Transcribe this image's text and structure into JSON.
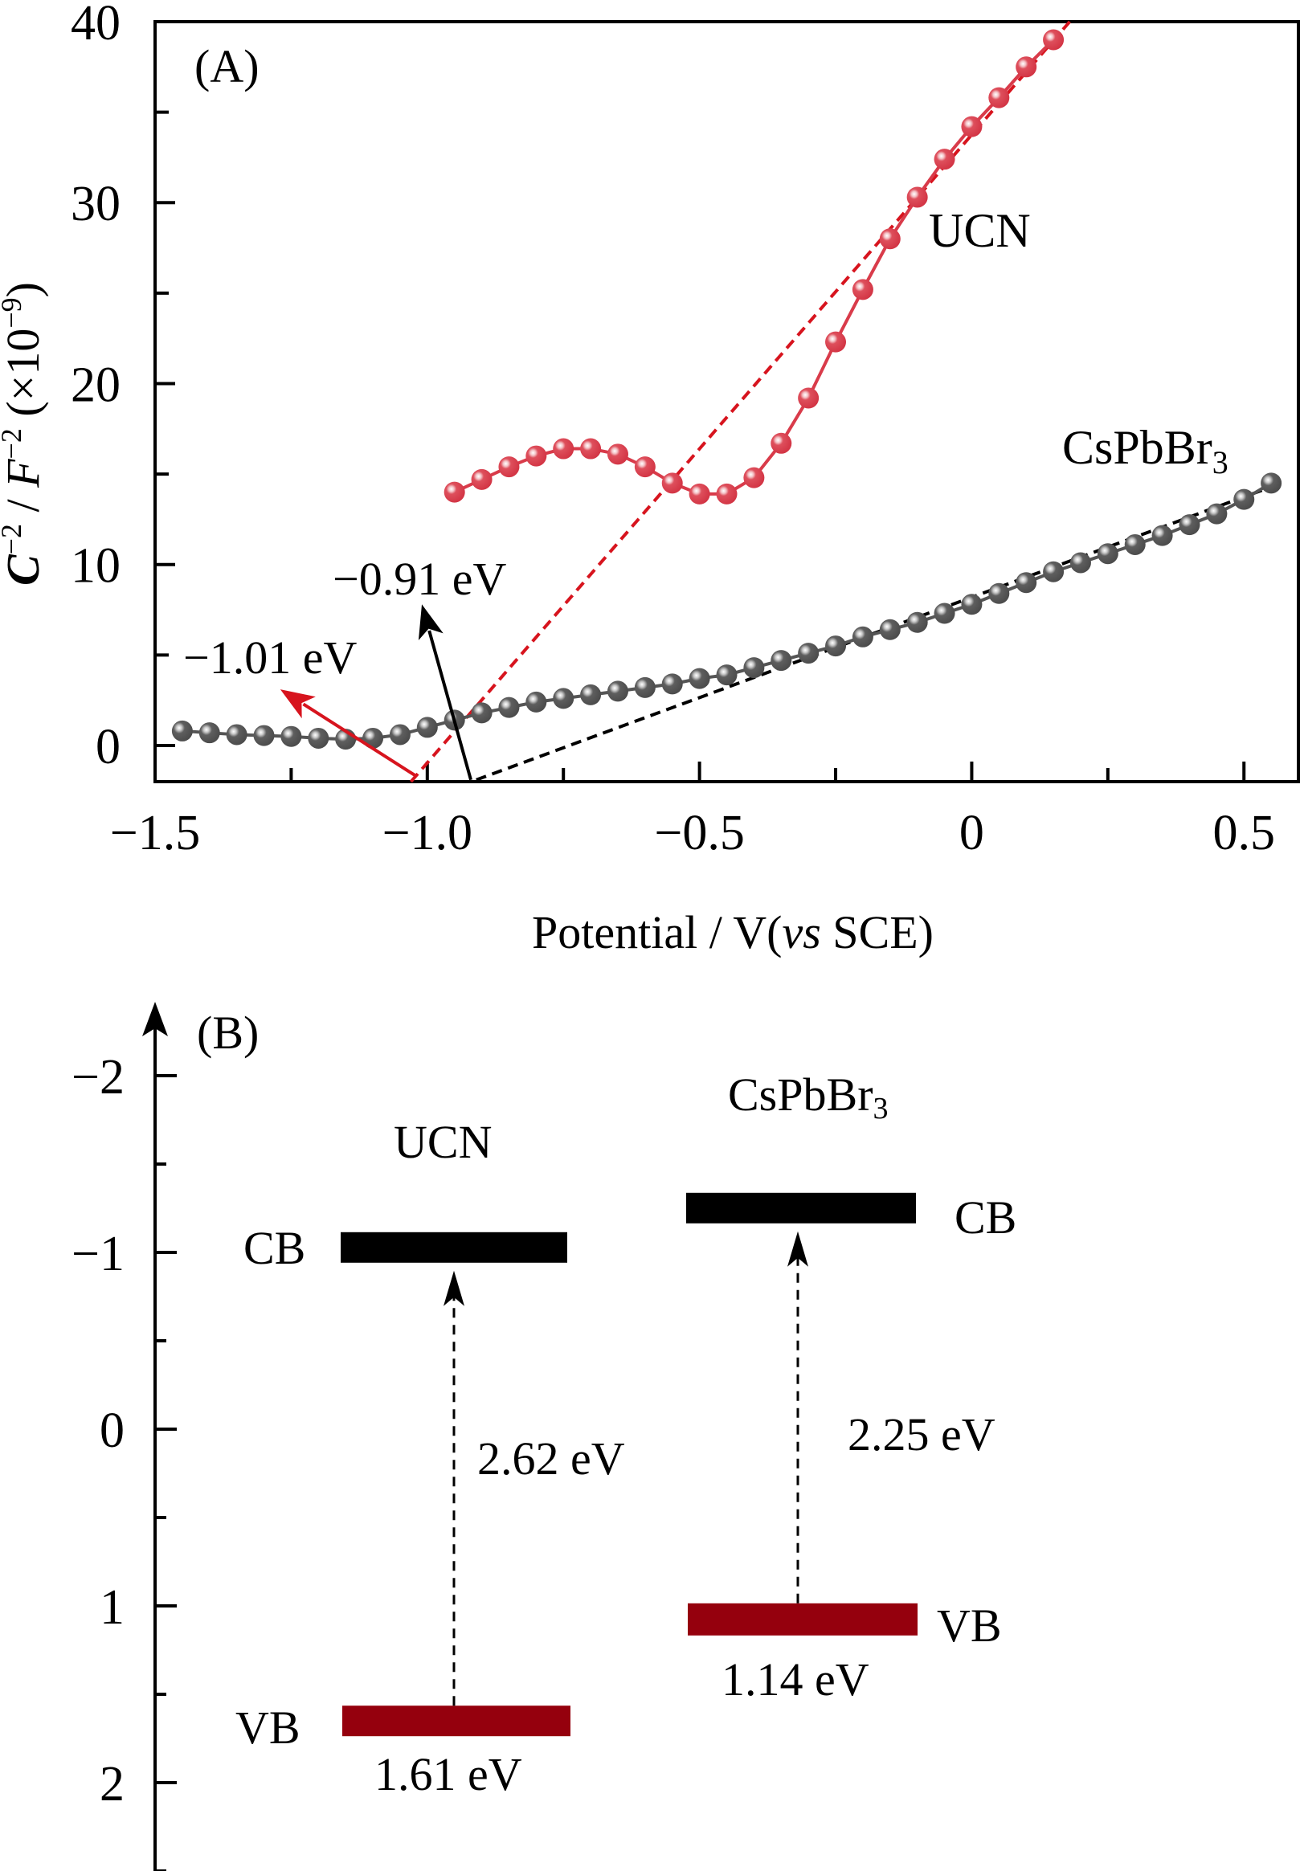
{
  "chart_data": [
    {
      "panel": "(A)",
      "type": "scatter",
      "title": "",
      "xlabel": "Potential / V(vs SCE)",
      "xlabel_parts": {
        "pre": "Potential / V(",
        "italic": "vs",
        "post": " SCE)"
      },
      "ylabel": "C⁻² / F⁻² (×10⁻⁹)",
      "ylabel_parts": {
        "c": "C",
        "sup1": "−2",
        "mid": " / ",
        "f": "F",
        "sup2": "−2",
        "tail": " (×10",
        "sup3": "−9",
        "end": ")"
      },
      "xlim": [
        -1.5,
        0.6
      ],
      "ylim": [
        -2,
        40
      ],
      "grid": false,
      "x_ticks": [
        {
          "value": -1.5,
          "label": "−1.5"
        },
        {
          "value": -1.0,
          "label": "−1.0"
        },
        {
          "value": -0.5,
          "label": "−0.5"
        },
        {
          "value": 0,
          "label": "0"
        },
        {
          "value": 0.5,
          "label": "0.5"
        }
      ],
      "x_minor_ticks": [
        -1.25,
        -0.75,
        -0.25,
        0.25
      ],
      "y_ticks": [
        {
          "value": 0,
          "label": "0"
        },
        {
          "value": 10,
          "label": "10"
        },
        {
          "value": 20,
          "label": "20"
        },
        {
          "value": 30,
          "label": "30"
        },
        {
          "value": 40,
          "label": "40"
        }
      ],
      "y_minor_ticks": [
        5,
        15,
        25,
        35
      ],
      "series": [
        {
          "name": "UCN",
          "color": "#D93B4A",
          "x": [
            -0.95,
            -0.9,
            -0.85,
            -0.8,
            -0.75,
            -0.7,
            -0.65,
            -0.6,
            -0.55,
            -0.5,
            -0.45,
            -0.4,
            -0.35,
            -0.3,
            -0.25,
            -0.2,
            -0.15,
            -0.1,
            -0.05,
            0.0,
            0.05,
            0.1,
            0.15
          ],
          "y": [
            14.0,
            14.7,
            15.4,
            16.0,
            16.4,
            16.4,
            16.1,
            15.4,
            14.5,
            13.9,
            13.9,
            14.8,
            16.7,
            19.2,
            22.3,
            25.2,
            28.0,
            30.3,
            32.4,
            34.2,
            35.8,
            37.5,
            39.0
          ],
          "label": "UCN"
        },
        {
          "name": "CsPbBr3",
          "color": "#555555",
          "x": [
            -1.45,
            -1.4,
            -1.35,
            -1.3,
            -1.25,
            -1.2,
            -1.15,
            -1.1,
            -1.05,
            -1.0,
            -0.95,
            -0.9,
            -0.85,
            -0.8,
            -0.75,
            -0.7,
            -0.65,
            -0.6,
            -0.55,
            -0.5,
            -0.45,
            -0.4,
            -0.35,
            -0.3,
            -0.25,
            -0.2,
            -0.15,
            -0.1,
            -0.05,
            0.0,
            0.05,
            0.1,
            0.15,
            0.2,
            0.25,
            0.3,
            0.35,
            0.4,
            0.45,
            0.5,
            0.55
          ],
          "y": [
            0.8,
            0.7,
            0.6,
            0.55,
            0.5,
            0.4,
            0.35,
            0.4,
            0.6,
            1.0,
            1.4,
            1.8,
            2.1,
            2.4,
            2.6,
            2.8,
            3.0,
            3.2,
            3.4,
            3.7,
            3.9,
            4.3,
            4.7,
            5.1,
            5.5,
            6.0,
            6.4,
            6.8,
            7.3,
            7.8,
            8.4,
            9.0,
            9.6,
            10.1,
            10.6,
            11.1,
            11.6,
            12.2,
            12.8,
            13.6,
            14.5
          ],
          "label": "CsPbBr₃",
          "label_main": "CsPbBr",
          "label_sub": "3"
        }
      ],
      "fit_lines": [
        {
          "name": "UCN-tangent",
          "color": "#D7141E",
          "style": "dashed",
          "from": [
            -1.03,
            -2.0
          ],
          "to": [
            0.18,
            40.0
          ]
        },
        {
          "name": "CsPbBr3-tangent",
          "color": "#000000",
          "style": "dashed",
          "from": [
            -0.91,
            -1.9
          ],
          "to": [
            0.56,
            14.4
          ]
        }
      ],
      "annotations": [
        {
          "text": "−1.01 eV",
          "color": "#D7141E",
          "arrow_from": [
            -1.02,
            -1.7
          ],
          "arrow_to": [
            -1.27,
            3.1
          ]
        },
        {
          "text": "−0.91 eV",
          "color": "#000000",
          "arrow_from": [
            -0.92,
            -1.9
          ],
          "arrow_to": [
            -1.01,
            7.8
          ]
        }
      ]
    },
    {
      "panel": "(B)",
      "type": "band-diagram",
      "ylabel": "",
      "ylim": [
        2.5,
        -2.3
      ],
      "y_ticks": [
        {
          "value": -2,
          "label": "−2"
        },
        {
          "value": -1,
          "label": "−1"
        },
        {
          "value": 0,
          "label": "0"
        },
        {
          "value": 1,
          "label": "1"
        },
        {
          "value": 2,
          "label": "2"
        }
      ],
      "y_minor_ticks": [
        -1.5,
        -0.5,
        0.5,
        1.5,
        2.5
      ],
      "materials": [
        {
          "name": "UCN",
          "label": "UCN",
          "cb": {
            "label": "CB",
            "value": -1.01,
            "color": "#000000"
          },
          "vb": {
            "label": "VB",
            "value": 1.61,
            "value_label": "1.61 eV",
            "color": "#95000D"
          },
          "gap_label": "2.62 eV"
        },
        {
          "name": "CsPbBr3",
          "label_main": "CsPbBr",
          "label_sub": "3",
          "cb": {
            "label": "CB",
            "value": -1.11,
            "color": "#000000"
          },
          "vb": {
            "label": "VB",
            "value": 1.14,
            "value_label": "1.14 eV",
            "color": "#95000D"
          },
          "gap_label": "2.25 eV"
        }
      ]
    }
  ]
}
